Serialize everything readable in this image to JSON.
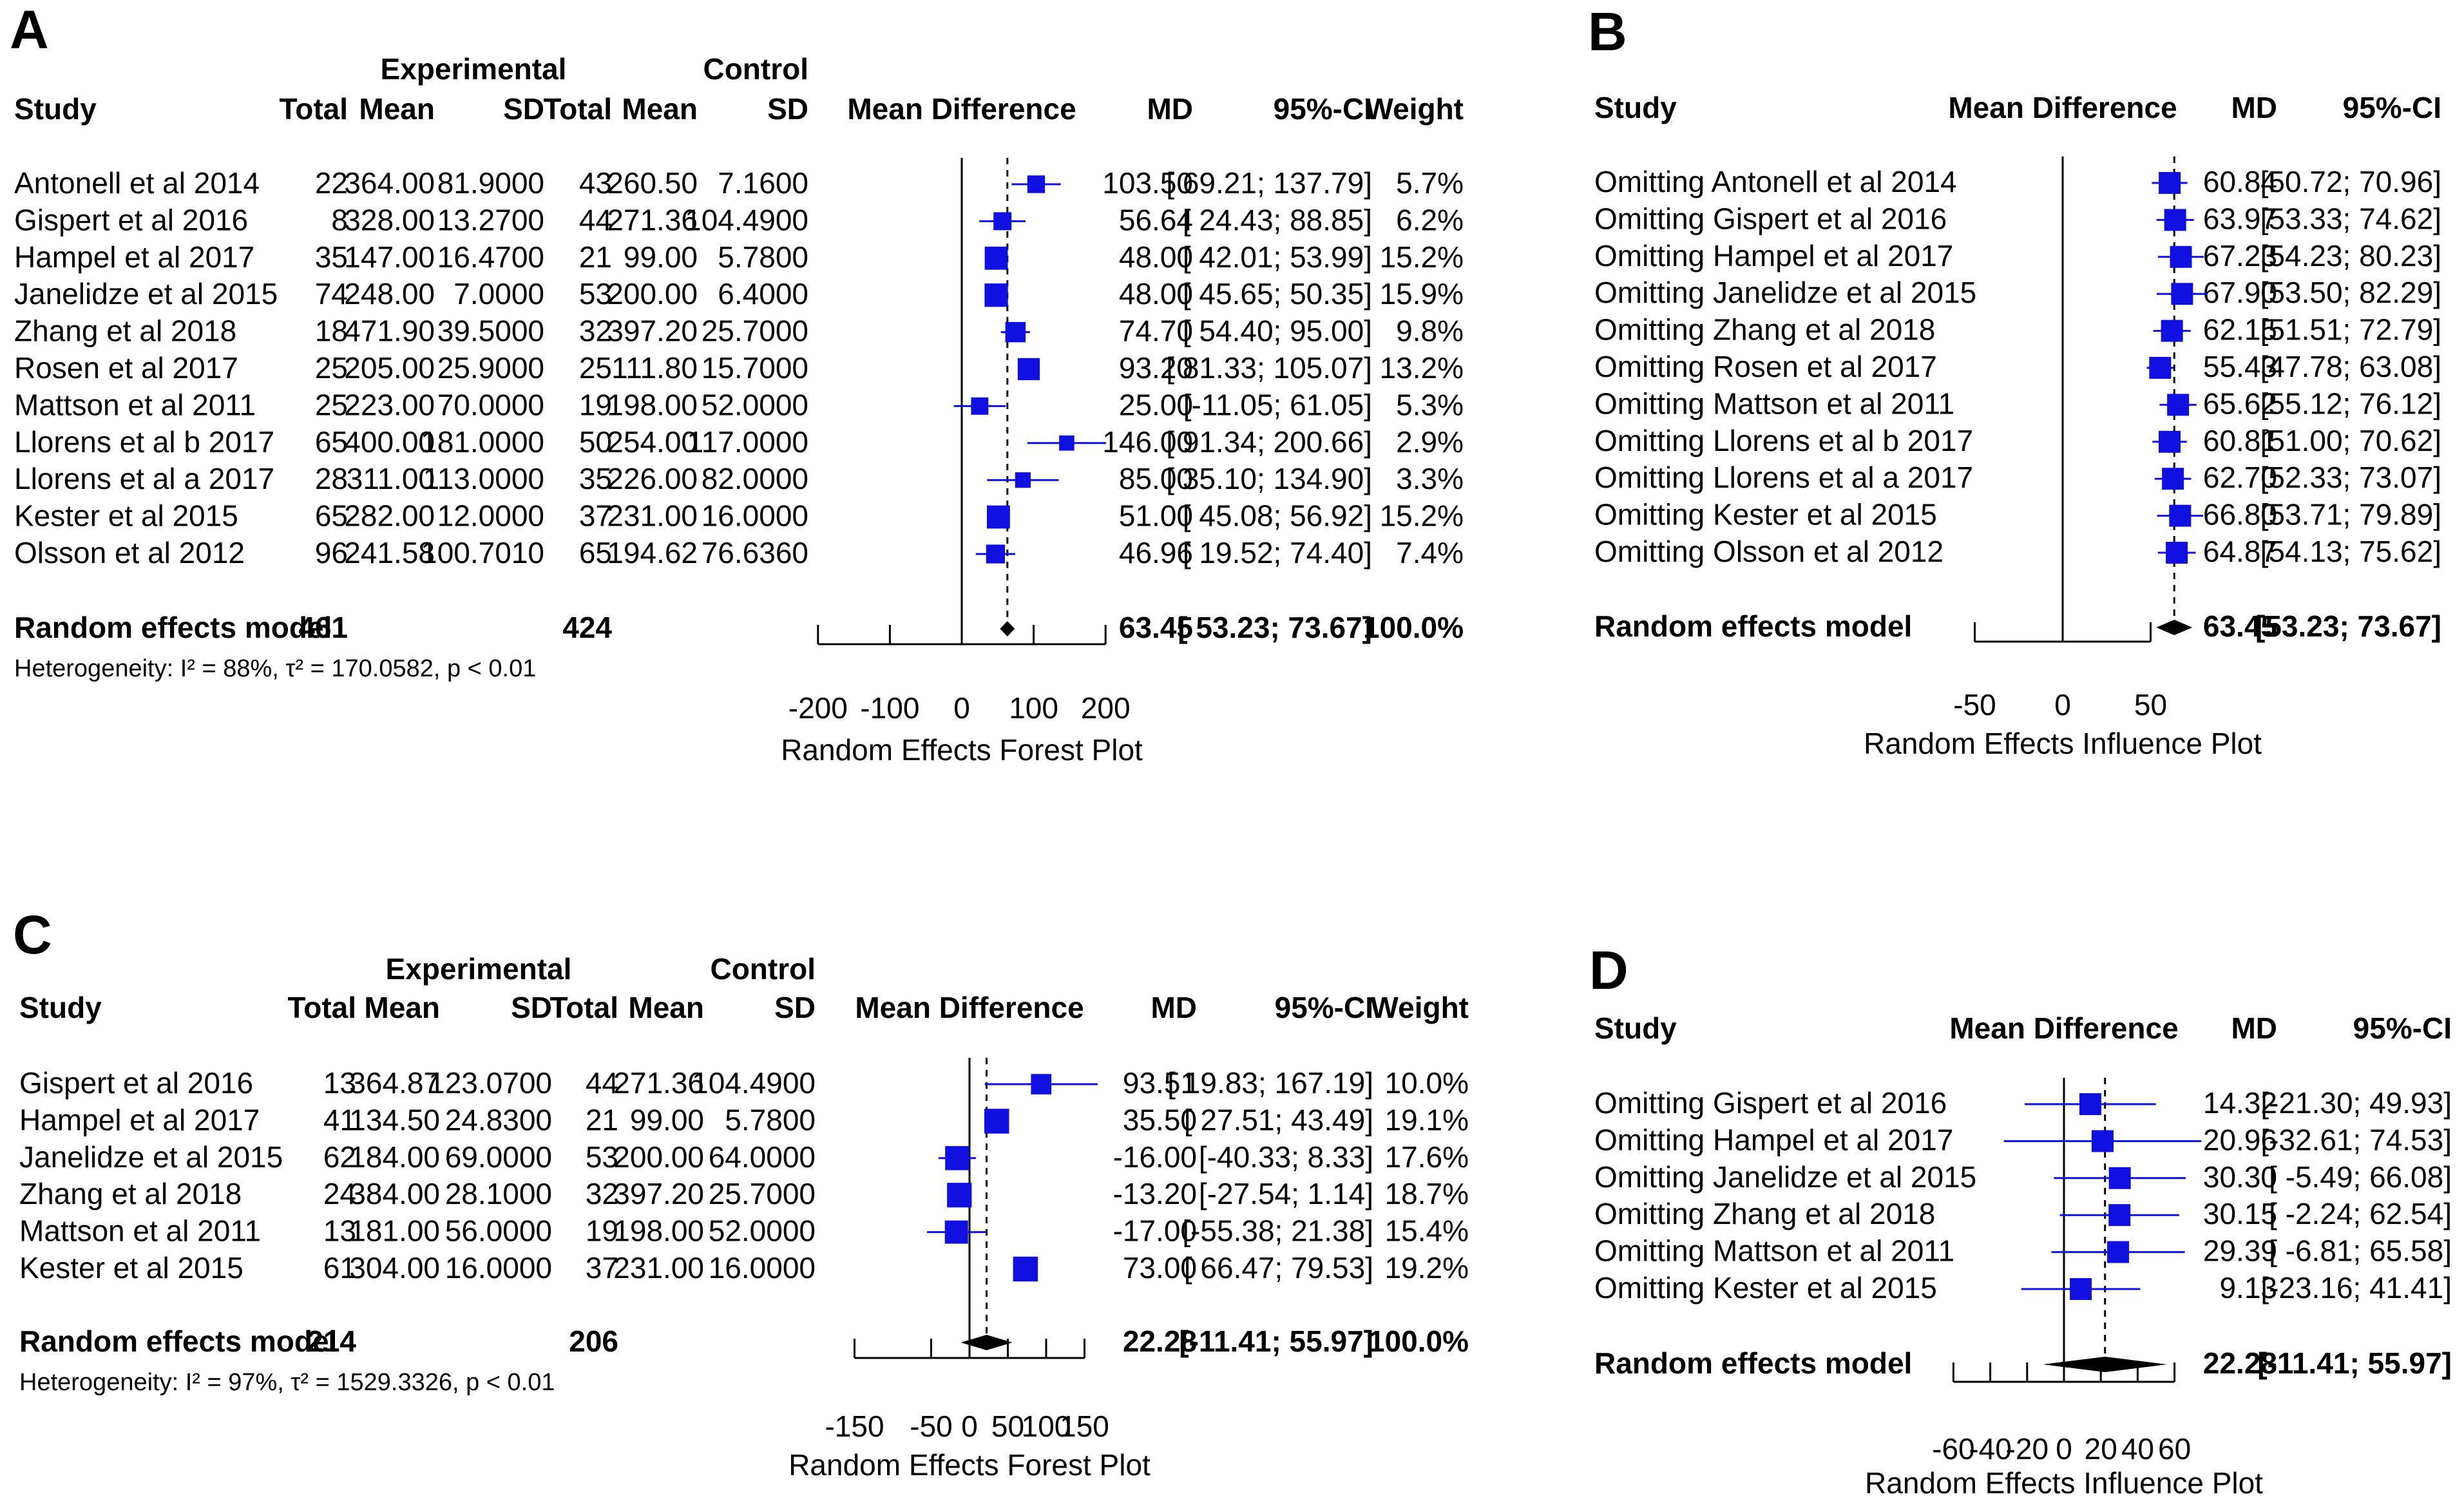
{
  "chart_data": [
    {
      "type": "forest",
      "panel_letter": "A",
      "header": {
        "experimental": "Experimental",
        "control": "Control",
        "study": "Study",
        "total": "Total",
        "mean": "Mean",
        "sd": "SD",
        "mean_difference": "Mean Difference",
        "md": "MD",
        "ci": "95%-CI",
        "weight": "Weight"
      },
      "rows": [
        {
          "study": "Antonell et al 2014",
          "e_total": "22",
          "e_mean": "364.00",
          "e_sd": "81.9000",
          "c_total": "43",
          "c_mean": "260.50",
          "c_sd": "7.1600",
          "md": 103.5,
          "lo": 69.21,
          "hi": 137.79,
          "md_text": "103.50",
          "ci_text": "[ 69.21; 137.79]",
          "weight": 5.7,
          "weight_text": "5.7%"
        },
        {
          "study": "Gispert et al 2016",
          "e_total": "8",
          "e_mean": "328.00",
          "e_sd": "13.2700",
          "c_total": "44",
          "c_mean": "271.36",
          "c_sd": "104.4900",
          "md": 56.64,
          "lo": 24.43,
          "hi": 88.85,
          "md_text": "56.64",
          "ci_text": "[ 24.43; 88.85]",
          "weight": 6.2,
          "weight_text": "6.2%"
        },
        {
          "study": "Hampel et al 2017",
          "e_total": "35",
          "e_mean": "147.00",
          "e_sd": "16.4700",
          "c_total": "21",
          "c_mean": "99.00",
          "c_sd": "5.7800",
          "md": 48.0,
          "lo": 42.01,
          "hi": 53.99,
          "md_text": "48.00",
          "ci_text": "[ 42.01; 53.99]",
          "weight": 15.2,
          "weight_text": "15.2%"
        },
        {
          "study": "Janelidze et al 2015",
          "e_total": "74",
          "e_mean": "248.00",
          "e_sd": "7.0000",
          "c_total": "53",
          "c_mean": "200.00",
          "c_sd": "6.4000",
          "md": 48.0,
          "lo": 45.65,
          "hi": 50.35,
          "md_text": "48.00",
          "ci_text": "[ 45.65; 50.35]",
          "weight": 15.9,
          "weight_text": "15.9%"
        },
        {
          "study": "Zhang et al 2018",
          "e_total": "18",
          "e_mean": "471.90",
          "e_sd": "39.5000",
          "c_total": "32",
          "c_mean": "397.20",
          "c_sd": "25.7000",
          "md": 74.7,
          "lo": 54.4,
          "hi": 95.0,
          "md_text": "74.70",
          "ci_text": "[ 54.40; 95.00]",
          "weight": 9.8,
          "weight_text": "9.8%"
        },
        {
          "study": "Rosen et al 2017",
          "e_total": "25",
          "e_mean": "205.00",
          "e_sd": "25.9000",
          "c_total": "25",
          "c_mean": "111.80",
          "c_sd": "15.7000",
          "md": 93.2,
          "lo": 81.33,
          "hi": 105.07,
          "md_text": "93.20",
          "ci_text": "[ 81.33; 105.07]",
          "weight": 13.2,
          "weight_text": "13.2%"
        },
        {
          "study": "Mattson et al 2011",
          "e_total": "25",
          "e_mean": "223.00",
          "e_sd": "70.0000",
          "c_total": "19",
          "c_mean": "198.00",
          "c_sd": "52.0000",
          "md": 25.0,
          "lo": -11.05,
          "hi": 61.05,
          "md_text": "25.00",
          "ci_text": "[-11.05; 61.05]",
          "weight": 5.3,
          "weight_text": "5.3%"
        },
        {
          "study": "Llorens et al b 2017",
          "e_total": "65",
          "e_mean": "400.00",
          "e_sd": "181.0000",
          "c_total": "50",
          "c_mean": "254.00",
          "c_sd": "117.0000",
          "md": 146.0,
          "lo": 91.34,
          "hi": 200.66,
          "md_text": "146.00",
          "ci_text": "[ 91.34; 200.66]",
          "weight": 2.9,
          "weight_text": "2.9%"
        },
        {
          "study": "Llorens et al a 2017",
          "e_total": "28",
          "e_mean": "311.00",
          "e_sd": "113.0000",
          "c_total": "35",
          "c_mean": "226.00",
          "c_sd": "82.0000",
          "md": 85.0,
          "lo": 35.1,
          "hi": 134.9,
          "md_text": "85.00",
          "ci_text": "[ 35.10; 134.90]",
          "weight": 3.3,
          "weight_text": "3.3%"
        },
        {
          "study": "Kester et al 2015",
          "e_total": "65",
          "e_mean": "282.00",
          "e_sd": "12.0000",
          "c_total": "37",
          "c_mean": "231.00",
          "c_sd": "16.0000",
          "md": 51.0,
          "lo": 45.08,
          "hi": 56.92,
          "md_text": "51.00",
          "ci_text": "[ 45.08; 56.92]",
          "weight": 15.2,
          "weight_text": "15.2%"
        },
        {
          "study": "Olsson et al 2012",
          "e_total": "96",
          "e_mean": "241.58",
          "e_sd": "100.7010",
          "c_total": "65",
          "c_mean": "194.62",
          "c_sd": "76.6360",
          "md": 46.96,
          "lo": 19.52,
          "hi": 74.4,
          "md_text": "46.96",
          "ci_text": "[ 19.52; 74.40]",
          "weight": 7.4,
          "weight_text": "7.4%"
        }
      ],
      "summary": {
        "label": "Random effects model",
        "e_total": "461",
        "c_total": "424",
        "md": 63.45,
        "lo": 53.23,
        "hi": 73.67,
        "md_text": "63.45",
        "ci_text": "[ 53.23; 73.67]",
        "weight_text": "100.0%"
      },
      "heterogeneity": "Heterogeneity: I² = 88%, τ² = 170.0582, p < 0.01",
      "xlim": [
        -200,
        200
      ],
      "ticks": [
        -200,
        -100,
        0,
        100,
        200
      ],
      "xlabel": "Random Effects Forest Plot"
    },
    {
      "type": "influence",
      "panel_letter": "B",
      "header": {
        "study": "Study",
        "mean_difference": "Mean Difference",
        "md": "MD",
        "ci": "95%-CI"
      },
      "rows": [
        {
          "study": "Omitting Antonell et al 2014",
          "md": 60.84,
          "lo": 50.72,
          "hi": 70.96,
          "md_text": "60.84",
          "ci_text": "[50.72; 70.96]"
        },
        {
          "study": "Omitting Gispert et al 2016",
          "md": 63.97,
          "lo": 53.33,
          "hi": 74.62,
          "md_text": "63.97",
          "ci_text": "[53.33; 74.62]"
        },
        {
          "study": "Omitting Hampel et al 2017",
          "md": 67.23,
          "lo": 54.23,
          "hi": 80.23,
          "md_text": "67.23",
          "ci_text": "[54.23; 80.23]"
        },
        {
          "study": "Omitting Janelidze et al 2015",
          "md": 67.9,
          "lo": 53.5,
          "hi": 82.29,
          "md_text": "67.90",
          "ci_text": "[53.50; 82.29]"
        },
        {
          "study": "Omitting Zhang et al 2018",
          "md": 62.15,
          "lo": 51.51,
          "hi": 72.79,
          "md_text": "62.15",
          "ci_text": "[51.51; 72.79]"
        },
        {
          "study": "Omitting Rosen et al 2017",
          "md": 55.43,
          "lo": 47.78,
          "hi": 63.08,
          "md_text": "55.43",
          "ci_text": "[47.78; 63.08]"
        },
        {
          "study": "Omitting Mattson et al 2011",
          "md": 65.62,
          "lo": 55.12,
          "hi": 76.12,
          "md_text": "65.62",
          "ci_text": "[55.12; 76.12]"
        },
        {
          "study": "Omitting Llorens et al b 2017",
          "md": 60.81,
          "lo": 51.0,
          "hi": 70.62,
          "md_text": "60.81",
          "ci_text": "[51.00; 70.62]"
        },
        {
          "study": "Omitting Llorens et al a 2017",
          "md": 62.7,
          "lo": 52.33,
          "hi": 73.07,
          "md_text": "62.70",
          "ci_text": "[52.33; 73.07]"
        },
        {
          "study": "Omitting Kester et al 2015",
          "md": 66.8,
          "lo": 53.71,
          "hi": 79.89,
          "md_text": "66.80",
          "ci_text": "[53.71; 79.89]"
        },
        {
          "study": "Omitting Olsson et al 2012",
          "md": 64.87,
          "lo": 54.13,
          "hi": 75.62,
          "md_text": "64.87",
          "ci_text": "[54.13; 75.62]"
        }
      ],
      "summary": {
        "label": "Random effects model",
        "md": 63.45,
        "lo": 53.23,
        "hi": 73.67,
        "md_text": "63.45",
        "ci_text": "[53.23; 73.67]"
      },
      "xlim": [
        -50,
        50
      ],
      "ticks": [
        -50,
        0,
        50
      ],
      "xlabel": "Random Effects Influence Plot"
    },
    {
      "type": "forest",
      "panel_letter": "C",
      "header": {
        "experimental": "Experimental",
        "control": "Control",
        "study": "Study",
        "total": "Total",
        "mean": "Mean",
        "sd": "SD",
        "mean_difference": "Mean Difference",
        "md": "MD",
        "ci": "95%-CI",
        "weight": "Weight"
      },
      "rows": [
        {
          "study": "Gispert et al 2016",
          "e_total": "13",
          "e_mean": "364.87",
          "e_sd": "123.0700",
          "c_total": "44",
          "c_mean": "271.36",
          "c_sd": "104.4900",
          "md": 93.51,
          "lo": 19.83,
          "hi": 167.19,
          "md_text": "93.51",
          "ci_text": "[ 19.83; 167.19]",
          "weight": 10.0,
          "weight_text": "10.0%"
        },
        {
          "study": "Hampel et al 2017",
          "e_total": "41",
          "e_mean": "134.50",
          "e_sd": "24.8300",
          "c_total": "21",
          "c_mean": "99.00",
          "c_sd": "5.7800",
          "md": 35.5,
          "lo": 27.51,
          "hi": 43.49,
          "md_text": "35.50",
          "ci_text": "[ 27.51; 43.49]",
          "weight": 19.1,
          "weight_text": "19.1%"
        },
        {
          "study": "Janelidze et al 2015",
          "e_total": "62",
          "e_mean": "184.00",
          "e_sd": "69.0000",
          "c_total": "53",
          "c_mean": "200.00",
          "c_sd": "64.0000",
          "md": -16.0,
          "lo": -40.33,
          "hi": 8.33,
          "md_text": "-16.00",
          "ci_text": "[-40.33; 8.33]",
          "weight": 17.6,
          "weight_text": "17.6%"
        },
        {
          "study": "Zhang et al 2018",
          "e_total": "24",
          "e_mean": "384.00",
          "e_sd": "28.1000",
          "c_total": "32",
          "c_mean": "397.20",
          "c_sd": "25.7000",
          "md": -13.2,
          "lo": -27.54,
          "hi": 1.14,
          "md_text": "-13.20",
          "ci_text": "[-27.54; 1.14]",
          "weight": 18.7,
          "weight_text": "18.7%"
        },
        {
          "study": "Mattson et al 2011",
          "e_total": "13",
          "e_mean": "181.00",
          "e_sd": "56.0000",
          "c_total": "19",
          "c_mean": "198.00",
          "c_sd": "52.0000",
          "md": -17.0,
          "lo": -55.38,
          "hi": 21.38,
          "md_text": "-17.00",
          "ci_text": "[-55.38; 21.38]",
          "weight": 15.4,
          "weight_text": "15.4%"
        },
        {
          "study": "Kester et al 2015",
          "e_total": "61",
          "e_mean": "304.00",
          "e_sd": "16.0000",
          "c_total": "37",
          "c_mean": "231.00",
          "c_sd": "16.0000",
          "md": 73.0,
          "lo": 66.47,
          "hi": 79.53,
          "md_text": "73.00",
          "ci_text": "[ 66.47; 79.53]",
          "weight": 19.2,
          "weight_text": "19.2%"
        }
      ],
      "summary": {
        "label": "Random effects model",
        "e_total": "214",
        "c_total": "206",
        "md": 22.28,
        "lo": -11.41,
        "hi": 55.97,
        "md_text": "22.28",
        "ci_text": "[-11.41; 55.97]",
        "weight_text": "100.0%"
      },
      "heterogeneity": "Heterogeneity: I² = 97%, τ² = 1529.3326, p < 0.01",
      "xlim": [
        -150,
        150
      ],
      "ticks": [
        -150,
        -50,
        0,
        50,
        100,
        150
      ],
      "tick_labels": [
        "-150",
        "-50",
        "0",
        "50",
        "100",
        "150"
      ],
      "xlabel": "Random Effects Forest Plot"
    },
    {
      "type": "influence",
      "panel_letter": "D",
      "header": {
        "study": "Study",
        "mean_difference": "Mean Difference",
        "md": "MD",
        "ci": "95%-CI"
      },
      "rows": [
        {
          "study": "Omitting Gispert et al 2016",
          "md": 14.32,
          "lo": -21.3,
          "hi": 49.93,
          "md_text": "14.32",
          "ci_text": "[-21.30; 49.93]"
        },
        {
          "study": "Omitting Hampel et al 2017",
          "md": 20.96,
          "lo": -32.61,
          "hi": 74.53,
          "md_text": "20.96",
          "ci_text": "[-32.61; 74.53]"
        },
        {
          "study": "Omitting Janelidze et al 2015",
          "md": 30.3,
          "lo": -5.49,
          "hi": 66.08,
          "md_text": "30.30",
          "ci_text": "[ -5.49; 66.08]"
        },
        {
          "study": "Omitting Zhang et al 2018",
          "md": 30.15,
          "lo": -2.24,
          "hi": 62.54,
          "md_text": "30.15",
          "ci_text": "[ -2.24; 62.54]"
        },
        {
          "study": "Omitting Mattson et al 2011",
          "md": 29.39,
          "lo": -6.81,
          "hi": 65.58,
          "md_text": "29.39",
          "ci_text": "[ -6.81; 65.58]"
        },
        {
          "study": "Omitting Kester et al 2015",
          "md": 9.13,
          "lo": -23.16,
          "hi": 41.41,
          "md_text": "9.13",
          "ci_text": "[-23.16; 41.41]"
        }
      ],
      "summary": {
        "label": "Random effects model",
        "md": 22.28,
        "lo": -11.41,
        "hi": 55.97,
        "md_text": "22.28",
        "ci_text": "[-11.41; 55.97]"
      },
      "xlim": [
        -60,
        60
      ],
      "ticks": [
        -60,
        -40,
        -20,
        0,
        20,
        40,
        60
      ],
      "tick_labels": [
        "-60",
        "-40",
        "-20",
        "0",
        "20",
        "40",
        "60"
      ],
      "xlabel": "Random Effects Influence Plot"
    }
  ],
  "colors": {
    "marker": "#1010e0",
    "text": "#000000",
    "axis": "#000000"
  }
}
